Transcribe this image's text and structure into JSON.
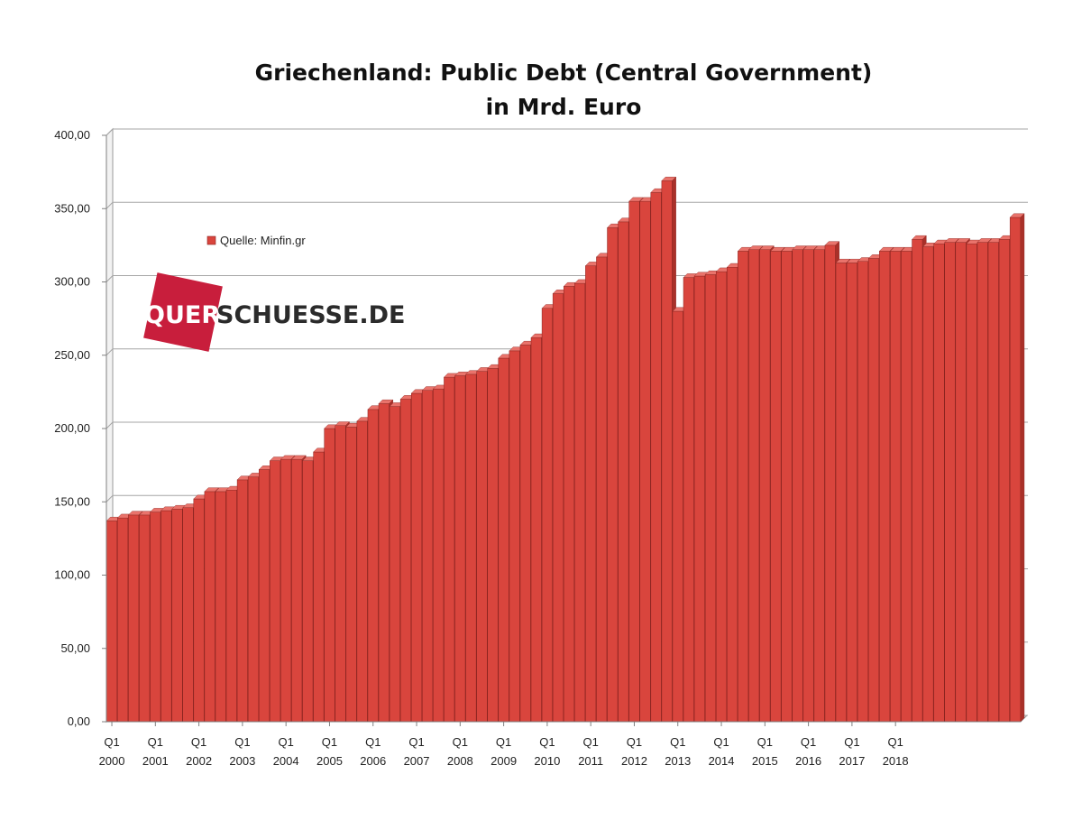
{
  "chart_data": {
    "type": "bar",
    "title": "Griechenland: Public Debt (Central Government)",
    "subtitle": "in Mrd. Euro",
    "ylim": [
      0,
      400
    ],
    "yticks": [
      "0,00",
      "50,00",
      "100,00",
      "150,00",
      "200,00",
      "250,00",
      "300,00",
      "350,00",
      "400,00"
    ],
    "grid": true,
    "legend": {
      "position": "top-left",
      "entries": [
        "Quelle: Minfin.gr"
      ]
    },
    "series": [
      {
        "color": "#d9453d",
        "values": [
          137,
          139,
          141,
          141,
          143,
          144,
          145,
          146,
          152,
          157,
          157,
          158,
          165,
          167,
          172,
          178,
          179,
          179,
          178,
          184,
          200,
          202,
          201,
          205,
          213,
          217,
          215,
          220,
          224,
          226,
          227,
          235,
          236,
          237,
          239,
          241,
          248,
          253,
          257,
          262,
          282,
          292,
          297,
          299,
          311,
          317,
          337,
          341,
          355,
          355,
          361,
          369,
          280,
          303,
          304,
          305,
          307,
          310,
          321,
          322,
          322,
          321,
          321,
          322,
          322,
          322,
          325,
          313,
          313,
          314,
          316,
          321,
          321,
          321,
          329,
          324,
          326,
          327,
          327,
          326,
          327,
          327,
          329,
          344
        ]
      }
    ],
    "xtick_labels": [
      {
        "q": "Q1",
        "year": "2000"
      },
      {
        "q": "Q1",
        "year": "2001"
      },
      {
        "q": "Q1",
        "year": "2002"
      },
      {
        "q": "Q1",
        "year": "2003"
      },
      {
        "q": "Q1",
        "year": "2004"
      },
      {
        "q": "Q1",
        "year": "2005"
      },
      {
        "q": "Q1",
        "year": "2006"
      },
      {
        "q": "Q1",
        "year": "2007"
      },
      {
        "q": "Q1",
        "year": "2008"
      },
      {
        "q": "Q1",
        "year": "2009"
      },
      {
        "q": "Q1",
        "year": "2010"
      },
      {
        "q": "Q1",
        "year": "2011"
      },
      {
        "q": "Q1",
        "year": "2012"
      },
      {
        "q": "Q1",
        "year": "2013"
      },
      {
        "q": "Q1",
        "year": "2014"
      },
      {
        "q": "Q1",
        "year": "2015"
      },
      {
        "q": "Q1",
        "year": "2016"
      },
      {
        "q": "Q1",
        "year": "2017"
      },
      {
        "q": "Q1",
        "year": "2018"
      }
    ]
  },
  "watermark": {
    "text_part1": "QUER",
    "text_part2": "SCHUESSE.DE",
    "accent_color": "#c81e3c",
    "text_color": "#2b2b2b"
  }
}
